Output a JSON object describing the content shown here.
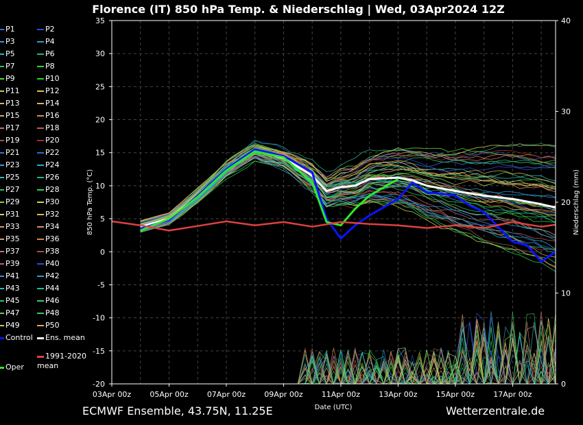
{
  "header": {
    "title": "Florence  (IT)  850 hPa Temp. & Niederschlag | Wed, 03Apr2024 12Z"
  },
  "footer": {
    "left_text": "ECMWF Ensemble, 43.75N, 11.25E",
    "right_text": "Wetterzentrale.de"
  },
  "legend": {
    "members": [
      {
        "label": "P1",
        "color": "#3b6fd8"
      },
      {
        "label": "P2",
        "color": "#2c4fd6"
      },
      {
        "label": "P3",
        "color": "#3a8fe0"
      },
      {
        "label": "P4",
        "color": "#2aa0c8"
      },
      {
        "label": "P5",
        "color": "#2bb6c4"
      },
      {
        "label": "P6",
        "color": "#22b58a"
      },
      {
        "label": "P7",
        "color": "#2fc06a"
      },
      {
        "label": "P8",
        "color": "#3ad050"
      },
      {
        "label": "P9",
        "color": "#5fd63c"
      },
      {
        "label": "P10",
        "color": "#2dd12d"
      },
      {
        "label": "P11",
        "color": "#d8c060"
      },
      {
        "label": "P12",
        "color": "#e0c050"
      },
      {
        "label": "P13",
        "color": "#d6b86a"
      },
      {
        "label": "P14",
        "color": "#d9b070"
      },
      {
        "label": "P15",
        "color": "#d8a07a"
      },
      {
        "label": "P16",
        "color": "#d98a50"
      },
      {
        "label": "P17",
        "color": "#cf7070"
      },
      {
        "label": "P18",
        "color": "#c85a5a"
      },
      {
        "label": "P19",
        "color": "#b04848"
      },
      {
        "label": "P20",
        "color": "#a03030"
      },
      {
        "label": "P21",
        "color": "#3b6fd8"
      },
      {
        "label": "P22",
        "color": "#2c6fd0"
      },
      {
        "label": "P23",
        "color": "#3a9fe0"
      },
      {
        "label": "P24",
        "color": "#2ab0d0"
      },
      {
        "label": "P25",
        "color": "#2bc0c0"
      },
      {
        "label": "P26",
        "color": "#22b58a"
      },
      {
        "label": "P27",
        "color": "#2fc06a"
      },
      {
        "label": "P28",
        "color": "#3ad050"
      },
      {
        "label": "P29",
        "color": "#7fd63c"
      },
      {
        "label": "P30",
        "color": "#d8d050"
      },
      {
        "label": "P31",
        "color": "#e0d060"
      },
      {
        "label": "P32",
        "color": "#d6c050"
      },
      {
        "label": "P33",
        "color": "#d9a060"
      },
      {
        "label": "P34",
        "color": "#d89070"
      },
      {
        "label": "P35",
        "color": "#d8a07a"
      },
      {
        "label": "P36",
        "color": "#d98a50"
      },
      {
        "label": "P37",
        "color": "#cf7070"
      },
      {
        "label": "P38",
        "color": "#a85050"
      },
      {
        "label": "P39",
        "color": "#c06060"
      },
      {
        "label": "P40",
        "color": "#2c4fd6"
      },
      {
        "label": "P41",
        "color": "#3a8fe0"
      },
      {
        "label": "P42",
        "color": "#2aa0c8"
      },
      {
        "label": "P43",
        "color": "#2bb6c4"
      },
      {
        "label": "P44",
        "color": "#22c58a"
      },
      {
        "label": "P45",
        "color": "#2fc06a"
      },
      {
        "label": "P46",
        "color": "#3ad070"
      },
      {
        "label": "P47",
        "color": "#5fd63c"
      },
      {
        "label": "P48",
        "color": "#3ad050"
      },
      {
        "label": "P49",
        "color": "#d8c060"
      },
      {
        "label": "P50",
        "color": "#e0b050"
      }
    ],
    "control": {
      "label": "Control",
      "color": "#0a14ff"
    },
    "ens_mean": {
      "label": "Ens. mean",
      "color": "#ffffff"
    },
    "oper": {
      "label": "Oper",
      "color": "#2ee82e"
    },
    "climate_mean": {
      "label": "1991-2020\nmean",
      "color": "#e04040"
    }
  },
  "chart_data": {
    "type": "line",
    "title": "Florence  (IT)  850 hPa Temp. & Niederschlag | Wed, 03Apr2024 12Z",
    "xlabel": "Date (UTC)",
    "ylabel": "850 hPa Temp. (°C)",
    "y2label": "Niederschlag (mm)",
    "x_ticks": [
      "03Apr 00z",
      "05Apr 00z",
      "07Apr 00z",
      "09Apr 00z",
      "11Apr 00z",
      "13Apr 00z",
      "15Apr 00z",
      "17Apr 00z"
    ],
    "xlim": [
      "2024-04-03 00:00",
      "2024-04-18 12:00"
    ],
    "ylim": [
      -20,
      35
    ],
    "y_ticks": [
      35,
      30,
      25,
      20,
      15,
      10,
      5,
      0,
      -5,
      -10,
      -15,
      -20
    ],
    "y2lim": [
      0,
      40
    ],
    "y2_ticks": [
      40,
      30,
      20,
      10,
      0
    ],
    "grid": true,
    "series": [
      {
        "name": "Ens. mean",
        "axis": "temperature",
        "x": [
          "2024-04-04 00:00",
          "2024-04-05 00:00",
          "2024-04-06 00:00",
          "2024-04-07 00:00",
          "2024-04-08 00:00",
          "2024-04-09 00:00",
          "2024-04-10 00:00",
          "2024-04-10 12:00",
          "2024-04-11 00:00",
          "2024-04-11 12:00",
          "2024-04-12 00:00",
          "2024-04-13 00:00",
          "2024-04-13 12:00",
          "2024-04-14 00:00",
          "2024-04-15 00:00",
          "2024-04-16 00:00",
          "2024-04-17 00:00",
          "2024-04-18 00:00",
          "2024-04-18 12:00"
        ],
        "values": [
          3.8,
          5,
          8.5,
          12.5,
          15.3,
          14.2,
          11.5,
          9.2,
          9.8,
          10,
          11,
          11.2,
          10.8,
          10,
          9.2,
          8.5,
          8,
          7.2,
          6.7
        ]
      },
      {
        "name": "Control",
        "axis": "temperature",
        "x": [
          "2024-04-04 00:00",
          "2024-04-05 00:00",
          "2024-04-06 00:00",
          "2024-04-07 00:00",
          "2024-04-08 00:00",
          "2024-04-09 00:00",
          "2024-04-10 00:00",
          "2024-04-10 12:00",
          "2024-04-11 00:00",
          "2024-04-11 12:00",
          "2024-04-12 00:00",
          "2024-04-13 00:00",
          "2024-04-13 12:00",
          "2024-04-14 00:00",
          "2024-04-15 00:00",
          "2024-04-15 12:00",
          "2024-04-16 00:00",
          "2024-04-17 00:00",
          "2024-04-17 12:00",
          "2024-04-18 00:00",
          "2024-04-18 12:00"
        ],
        "values": [
          3.5,
          4.8,
          8.5,
          12.5,
          15.5,
          14.5,
          12,
          5,
          2,
          4,
          5.5,
          8,
          10.5,
          9,
          8.5,
          7,
          6,
          1.5,
          1,
          -1.5,
          0
        ]
      },
      {
        "name": "Oper",
        "axis": "temperature",
        "x": [
          "2024-04-04 00:00",
          "2024-04-05 00:00",
          "2024-04-06 00:00",
          "2024-04-07 00:00",
          "2024-04-08 00:00",
          "2024-04-09 00:00",
          "2024-04-10 00:00",
          "2024-04-10 12:00",
          "2024-04-11 00:00",
          "2024-04-11 12:00",
          "2024-04-12 00:00",
          "2024-04-13 00:00"
        ],
        "values": [
          3.2,
          5,
          8.3,
          12.3,
          15.2,
          14.3,
          10.5,
          4.5,
          4,
          6.5,
          8.5,
          11
        ]
      },
      {
        "name": "1991-2020 mean",
        "axis": "temperature",
        "x": [
          "2024-04-03 00:00",
          "2024-04-04 00:00",
          "2024-04-05 00:00",
          "2024-04-06 00:00",
          "2024-04-07 00:00",
          "2024-04-08 00:00",
          "2024-04-09 00:00",
          "2024-04-10 00:00",
          "2024-04-11 00:00",
          "2024-04-12 00:00",
          "2024-04-13 00:00",
          "2024-04-14 00:00",
          "2024-04-15 00:00",
          "2024-04-16 00:00",
          "2024-04-17 00:00",
          "2024-04-18 00:00",
          "2024-04-18 12:00"
        ],
        "values": [
          4.6,
          4,
          3.2,
          3.9,
          4.6,
          4,
          4.5,
          3.8,
          4.5,
          4.2,
          4,
          3.6,
          4,
          3.6,
          4.5,
          3.8,
          4.1
        ]
      }
    ]
  }
}
